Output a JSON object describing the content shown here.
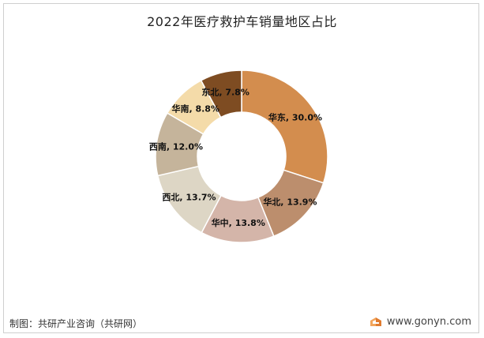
{
  "chart_data": {
    "type": "pie",
    "subtype": "donut",
    "title": "2022年医疗救护车销量地区占比",
    "categories": [
      "华东",
      "华北",
      "华中",
      "西北",
      "西南",
      "华南",
      "东北"
    ],
    "values": [
      30.0,
      13.9,
      13.8,
      13.7,
      12.0,
      8.8,
      7.8
    ],
    "unit": "%",
    "labels": [
      "华东, 30.0%",
      "华北, 13.9%",
      "华中, 13.8%",
      "西北, 13.7%",
      "西南, 12.0%",
      "华南, 8.8%",
      "东北, 7.8%"
    ],
    "colors": [
      "#D38D4E",
      "#BC8E6D",
      "#D4B5A9",
      "#DDD6C5",
      "#C5B49B",
      "#F4DBA9",
      "#7E4C22"
    ]
  },
  "footer": {
    "source": "制图：共研产业咨询（共研网）",
    "website": "www.gonyn.com"
  }
}
